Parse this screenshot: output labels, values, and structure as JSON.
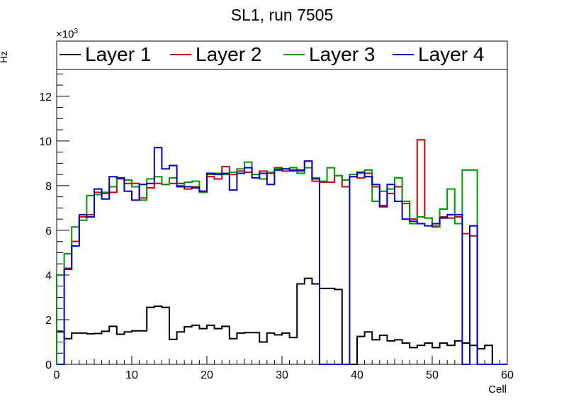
{
  "chart_data": {
    "type": "line",
    "title": "SL1, run 7505",
    "xlabel": "Cell",
    "ylabel": "Hz",
    "y_multiplier": "×10",
    "y_multiplier_exp": "3",
    "xlim": [
      0,
      60
    ],
    "ylim": [
      0,
      13.2
    ],
    "x_ticks": [
      0,
      10,
      20,
      30,
      40,
      50,
      60
    ],
    "y_ticks": [
      0,
      2,
      4,
      6,
      8,
      10,
      12
    ],
    "legend_position": "top",
    "series": [
      {
        "name": "Layer 1",
        "color": "#000000",
        "values": [
          1.45,
          1.15,
          1.4,
          1.4,
          1.37,
          1.38,
          1.48,
          1.7,
          1.35,
          1.45,
          1.5,
          1.5,
          2.55,
          2.6,
          2.55,
          1.12,
          1.45,
          1.68,
          1.75,
          1.6,
          1.75,
          1.6,
          1.7,
          1.15,
          1.4,
          1.42,
          1.42,
          1.0,
          1.4,
          1.32,
          1.4,
          1.2,
          3.6,
          3.85,
          3.6,
          3.4,
          3.4,
          3.35,
          0.0,
          0.0,
          1.25,
          1.45,
          1.1,
          1.3,
          1.05,
          1.1,
          0.95,
          0.75,
          0.85,
          0.95,
          0.75,
          0.95,
          0.85,
          1.05,
          0.95,
          0.85,
          0.7,
          0.85,
          0.0,
          0.0
        ]
      },
      {
        "name": "Layer 2",
        "color": "#cc0000",
        "values": [
          4.0,
          4.3,
          5.5,
          6.6,
          6.7,
          7.7,
          7.65,
          7.7,
          8.3,
          8.1,
          8.1,
          7.45,
          7.9,
          8.1,
          8.05,
          8.1,
          8.1,
          7.85,
          7.95,
          7.75,
          8.4,
          8.3,
          8.85,
          8.5,
          8.65,
          8.6,
          8.5,
          8.65,
          8.55,
          8.8,
          8.65,
          8.65,
          8.65,
          9.1,
          8.2,
          8.15,
          8.15,
          8.45,
          7.95,
          8.4,
          8.35,
          8.55,
          7.95,
          7.05,
          7.65,
          7.95,
          7.2,
          6.5,
          10.05,
          6.55,
          6.15,
          6.6,
          6.55,
          6.6,
          5.85,
          5.75,
          0.0,
          0.0,
          0.0,
          0.0
        ]
      },
      {
        "name": "Layer 3",
        "color": "#009900",
        "values": [
          4.0,
          4.95,
          6.15,
          6.45,
          7.55,
          7.6,
          7.7,
          7.95,
          8.35,
          8.25,
          7.95,
          7.35,
          8.3,
          8.4,
          8.05,
          8.35,
          8.0,
          8.15,
          8.2,
          7.7,
          8.5,
          8.55,
          8.5,
          8.6,
          8.75,
          9.05,
          8.5,
          8.3,
          8.6,
          8.75,
          8.75,
          8.8,
          8.55,
          8.8,
          8.35,
          8.2,
          8.8,
          8.45,
          8.25,
          8.5,
          8.55,
          8.7,
          7.3,
          7.75,
          7.85,
          8.35,
          7.3,
          6.3,
          6.6,
          6.55,
          6.2,
          6.95,
          7.85,
          6.3,
          8.7,
          8.7,
          0.0,
          0.0,
          0.0,
          0.0
        ]
      },
      {
        "name": "Layer 4",
        "color": "#0000cc",
        "values": [
          0.0,
          4.25,
          5.3,
          6.7,
          6.6,
          7.85,
          7.4,
          8.4,
          8.35,
          7.75,
          7.35,
          8.05,
          8.1,
          9.7,
          8.75,
          8.9,
          7.95,
          7.95,
          7.9,
          7.75,
          8.55,
          8.5,
          8.55,
          7.8,
          8.55,
          8.8,
          8.35,
          8.55,
          8.05,
          8.7,
          8.75,
          8.7,
          8.7,
          9.1,
          8.3,
          0.0,
          0.0,
          0.0,
          0.0,
          8.4,
          8.6,
          8.4,
          8.05,
          7.1,
          8.05,
          7.3,
          6.5,
          6.4,
          6.3,
          6.2,
          6.3,
          6.55,
          6.7,
          6.7,
          0.0,
          6.2,
          0.0,
          0.0,
          0.0,
          0.0
        ]
      }
    ]
  }
}
